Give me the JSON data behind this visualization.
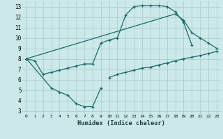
{
  "xlabel": "Humidex (Indice chaleur)",
  "xlim_min": -0.5,
  "xlim_max": 23.5,
  "ylim_min": 2.7,
  "ylim_max": 13.5,
  "xticks": [
    0,
    1,
    2,
    3,
    4,
    5,
    6,
    7,
    8,
    9,
    10,
    11,
    12,
    13,
    14,
    15,
    16,
    17,
    18,
    19,
    20,
    21,
    22,
    23
  ],
  "yticks": [
    3,
    4,
    5,
    6,
    7,
    8,
    9,
    10,
    11,
    12,
    13
  ],
  "bg_color": "#cce8e8",
  "grid_color": "#aacfcf",
  "line_color": "#1a6b6b",
  "line1_x": [
    0,
    1,
    2,
    3,
    4,
    5,
    6,
    7,
    8,
    9,
    10,
    11,
    12,
    13,
    14,
    15,
    16,
    17,
    18,
    19,
    20
  ],
  "line1_y": [
    8.0,
    7.8,
    6.5,
    6.7,
    6.9,
    7.1,
    7.3,
    7.5,
    7.5,
    9.5,
    9.8,
    10.0,
    12.2,
    13.0,
    13.1,
    13.1,
    13.1,
    13.0,
    12.5,
    11.5,
    9.3
  ],
  "line2_x": [
    0,
    3,
    4,
    5,
    6,
    7,
    8,
    9
  ],
  "line2_y": [
    8.0,
    5.2,
    4.8,
    4.5,
    3.7,
    3.4,
    3.4,
    5.2
  ],
  "line3_x": [
    0,
    18,
    19,
    20,
    21,
    22,
    23
  ],
  "line3_y": [
    8.0,
    12.3,
    11.7,
    10.5,
    10.0,
    9.5,
    9.0
  ],
  "line4_x": [
    10,
    11,
    12,
    13,
    14,
    15,
    16,
    17,
    18,
    19,
    20,
    21,
    22,
    23
  ],
  "line4_y": [
    6.2,
    6.5,
    6.7,
    6.9,
    7.1,
    7.2,
    7.4,
    7.6,
    7.8,
    8.0,
    8.15,
    8.3,
    8.5,
    8.7
  ]
}
